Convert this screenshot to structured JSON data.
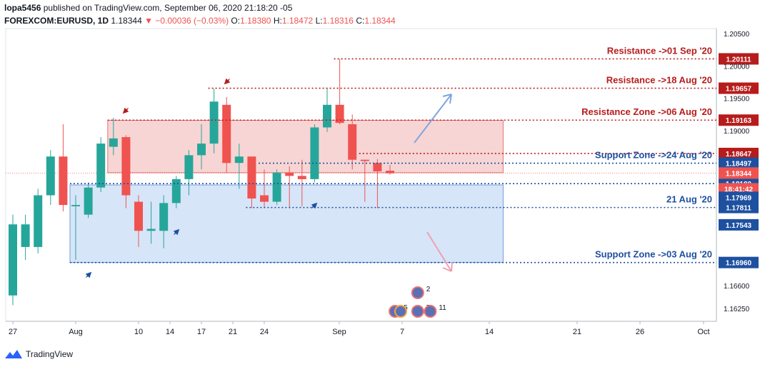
{
  "header": {
    "publisher": "lopa5456",
    "published_text": "published on TradingView.com, September 06, 2020 21:18:20 -05",
    "symbol": "FOREXCOM:EURUSD, 1D",
    "last": "1.18344",
    "change": "−0.00036 (−0.03%)",
    "o_label": "O:",
    "o": "1.18380",
    "h_label": "H:",
    "h": "1.18472",
    "l_label": "L:",
    "l": "1.18316",
    "c_label": "C:",
    "c": "1.18344"
  },
  "footer": {
    "brand": "TradingView"
  },
  "colors": {
    "up": "#26a69a",
    "down": "#ef5350",
    "resistance": "#b71c1c",
    "support": "#1e50a0",
    "res_zone": "#f4c7c6",
    "sup_zone": "#c9dcf6"
  },
  "chart_data": {
    "type": "candlestick",
    "ylim": [
      1.1605,
      1.2058
    ],
    "y_ticks": [
      "1.20500",
      "1.20000",
      "1.19500",
      "1.19000",
      "1.16600",
      "1.16250"
    ],
    "x_ticks": [
      "27",
      "Aug",
      "10",
      "14",
      "17",
      "21",
      "24",
      "Sep",
      "7",
      "14",
      "21",
      "26",
      "Oct"
    ],
    "candles": [
      {
        "o": 1.1645,
        "h": 1.177,
        "l": 1.163,
        "c": 1.1755
      },
      {
        "o": 1.172,
        "h": 1.177,
        "l": 1.17,
        "c": 1.1755
      },
      {
        "o": 1.172,
        "h": 1.181,
        "l": 1.171,
        "c": 1.18
      },
      {
        "o": 1.18,
        "h": 1.187,
        "l": 1.1785,
        "c": 1.186
      },
      {
        "o": 1.186,
        "h": 1.191,
        "l": 1.1775,
        "c": 1.1785
      },
      {
        "o": 1.1783,
        "h": 1.18,
        "l": 1.17,
        "c": 1.1785
      },
      {
        "o": 1.177,
        "h": 1.182,
        "l": 1.1765,
        "c": 1.1812
      },
      {
        "o": 1.1812,
        "h": 1.189,
        "l": 1.1805,
        "c": 1.188
      },
      {
        "o": 1.1875,
        "h": 1.192,
        "l": 1.1862,
        "c": 1.1888
      },
      {
        "o": 1.189,
        "h": 1.1893,
        "l": 1.178,
        "c": 1.18
      },
      {
        "o": 1.179,
        "h": 1.18,
        "l": 1.172,
        "c": 1.1745
      },
      {
        "o": 1.1745,
        "h": 1.179,
        "l": 1.1725,
        "c": 1.1748
      },
      {
        "o": 1.1745,
        "h": 1.18,
        "l": 1.1718,
        "c": 1.1788
      },
      {
        "o": 1.1788,
        "h": 1.183,
        "l": 1.178,
        "c": 1.1825
      },
      {
        "o": 1.1825,
        "h": 1.187,
        "l": 1.18,
        "c": 1.1862
      },
      {
        "o": 1.1862,
        "h": 1.191,
        "l": 1.184,
        "c": 1.188
      },
      {
        "o": 1.188,
        "h": 1.1965,
        "l": 1.1865,
        "c": 1.1945
      },
      {
        "o": 1.194,
        "h": 1.1952,
        "l": 1.1835,
        "c": 1.185
      },
      {
        "o": 1.185,
        "h": 1.188,
        "l": 1.181,
        "c": 1.186
      },
      {
        "o": 1.186,
        "h": 1.186,
        "l": 1.178,
        "c": 1.1795
      },
      {
        "o": 1.18,
        "h": 1.184,
        "l": 1.178,
        "c": 1.179
      },
      {
        "o": 1.179,
        "h": 1.184,
        "l": 1.1785,
        "c": 1.1835
      },
      {
        "o": 1.1835,
        "h": 1.1845,
        "l": 1.178,
        "c": 1.183
      },
      {
        "o": 1.183,
        "h": 1.1855,
        "l": 1.1783,
        "c": 1.1825
      },
      {
        "o": 1.1825,
        "h": 1.191,
        "l": 1.182,
        "c": 1.1905
      },
      {
        "o": 1.1905,
        "h": 1.1965,
        "l": 1.1898,
        "c": 1.194
      },
      {
        "o": 1.194,
        "h": 1.2011,
        "l": 1.191,
        "c": 1.1912
      },
      {
        "o": 1.191,
        "h": 1.1925,
        "l": 1.184,
        "c": 1.1855
      },
      {
        "o": 1.1855,
        "h": 1.1855,
        "l": 1.179,
        "c": 1.1853
      },
      {
        "o": 1.185,
        "h": 1.1856,
        "l": 1.178,
        "c": 1.1837
      },
      {
        "o": 1.1838,
        "h": 1.1847,
        "l": 1.1832,
        "c": 1.1834
      }
    ],
    "zones": [
      {
        "name": "resistance-zone",
        "y1": 1.1916,
        "y2": 1.1835,
        "x_from": 8,
        "x_to": 39
      },
      {
        "name": "support-zone",
        "y1": 1.1816,
        "y2": 1.1696,
        "x_from": 5,
        "x_to": 39
      }
    ],
    "levels": [
      {
        "label": "Resistance ->01 Sep '20",
        "price": "1.20111",
        "value": 1.20111,
        "x_from": 26,
        "color": "#b71c1c"
      },
      {
        "label": "Resistance ->18 Aug '20",
        "price": "1.19657",
        "value": 1.19657,
        "x_from": 16,
        "color": "#b71c1c"
      },
      {
        "label": "Resistance Zone ->06 Aug '20",
        "price": "1.19163",
        "value": 1.19163,
        "x_from": 8,
        "color": "#b71c1c"
      },
      {
        "label": "",
        "price": "1.18647",
        "value": 1.18647,
        "x_from": 28,
        "color": "#b71c1c"
      },
      {
        "label": "Support Zone ->24 Aug '20",
        "price": "1.18497",
        "value": 1.18497,
        "x_from": 20,
        "color": "#1e50a0"
      },
      {
        "label": "",
        "price": "1.18180",
        "value": 1.1818,
        "x_from": 5,
        "color": "#1e50a0"
      },
      {
        "label": "21 Aug '20",
        "price": "1.17811",
        "value": 1.17811,
        "x_from": 19,
        "color": "#1e50a0"
      },
      {
        "label": "Support Zone ->03 Aug '20",
        "price": "1.16960",
        "value": 1.1696,
        "x_from": 5,
        "color": "#1e50a0"
      }
    ],
    "extra_price_labels": [
      {
        "text": "1.18344",
        "value": 1.18344,
        "color": "#ef5350"
      },
      {
        "text": "18:41:42",
        "value": 1.181,
        "color": "#ef5350"
      },
      {
        "text": "1.17969",
        "value": 1.17969,
        "color": "#1e50a0"
      },
      {
        "text": "1.17543",
        "value": 1.17543,
        "color": "#1e50a0"
      }
    ],
    "last_price": 1.18344,
    "events": [
      {
        "text": "2",
        "x": 33.0,
        "row": 0
      },
      {
        "text": "5",
        "x": 31.2,
        "row": 1
      },
      {
        "text": "7",
        "x": 33.0,
        "row": 1
      },
      {
        "text": "11",
        "x": 34.0,
        "row": 1
      }
    ],
    "grid": false
  }
}
